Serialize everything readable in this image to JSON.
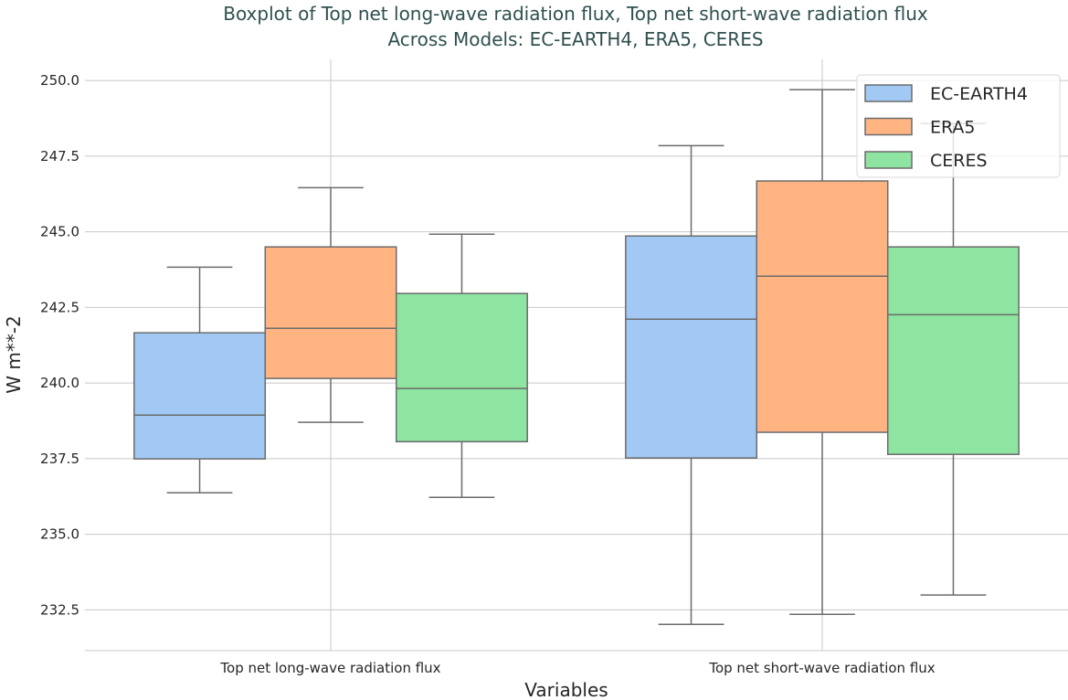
{
  "chart_data": {
    "type": "boxplot",
    "title": "Boxplot of Top net long-wave radiation flux, Top net short-wave radiation flux",
    "subtitle": "Across Models: EC-EARTH4, ERA5, CERES",
    "xlabel": "Variables",
    "ylabel": "W m**-2",
    "categories": [
      "Top net long-wave radiation flux",
      "Top net short-wave radiation flux"
    ],
    "ylim": [
      231.15,
      250.7
    ],
    "yticks": [
      "232.5",
      "235.0",
      "237.5",
      "240.0",
      "242.5",
      "245.0",
      "247.5",
      "250.0"
    ],
    "grid": true,
    "legend_placement": "top-right",
    "series": [
      {
        "name": "EC-EARTH4",
        "color": "#a1c9f4",
        "boxes": [
          {
            "whisker_low": 236.37,
            "q1": 237.49,
            "median": 238.94,
            "q3": 241.66,
            "whisker_high": 243.83
          },
          {
            "whisker_low": 232.02,
            "q1": 237.52,
            "median": 242.11,
            "q3": 244.86,
            "whisker_high": 247.85
          }
        ]
      },
      {
        "name": "ERA5",
        "color": "#ffb482",
        "boxes": [
          {
            "whisker_low": 238.7,
            "q1": 240.15,
            "median": 241.81,
            "q3": 244.5,
            "whisker_high": 246.46
          },
          {
            "whisker_low": 232.35,
            "q1": 238.37,
            "median": 243.53,
            "q3": 246.68,
            "whisker_high": 249.7
          }
        ]
      },
      {
        "name": "CERES",
        "color": "#8de5a1",
        "boxes": [
          {
            "whisker_low": 236.22,
            "q1": 238.06,
            "median": 239.82,
            "q3": 242.96,
            "whisker_high": 244.92
          },
          {
            "whisker_low": 232.99,
            "q1": 237.64,
            "median": 242.26,
            "q3": 244.5,
            "whisker_high": 248.58
          }
        ]
      }
    ]
  }
}
